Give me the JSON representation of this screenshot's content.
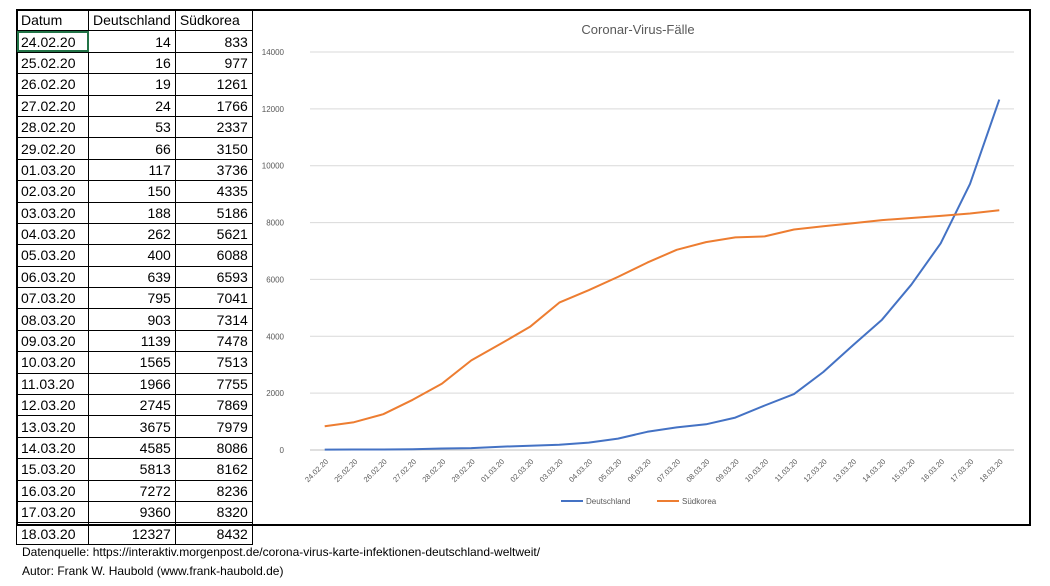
{
  "table": {
    "headers": [
      "Datum",
      "Deutschland",
      "Südkorea"
    ],
    "rows": [
      [
        "24.02.20",
        "14",
        "833"
      ],
      [
        "25.02.20",
        "16",
        "977"
      ],
      [
        "26.02.20",
        "19",
        "1261"
      ],
      [
        "27.02.20",
        "24",
        "1766"
      ],
      [
        "28.02.20",
        "53",
        "2337"
      ],
      [
        "29.02.20",
        "66",
        "3150"
      ],
      [
        "01.03.20",
        "117",
        "3736"
      ],
      [
        "02.03.20",
        "150",
        "4335"
      ],
      [
        "03.03.20",
        "188",
        "5186"
      ],
      [
        "04.03.20",
        "262",
        "5621"
      ],
      [
        "05.03.20",
        "400",
        "6088"
      ],
      [
        "06.03.20",
        "639",
        "6593"
      ],
      [
        "07.03.20",
        "795",
        "7041"
      ],
      [
        "08.03.20",
        "903",
        "7314"
      ],
      [
        "09.03.20",
        "1139",
        "7478"
      ],
      [
        "10.03.20",
        "1565",
        "7513"
      ],
      [
        "11.03.20",
        "1966",
        "7755"
      ],
      [
        "12.03.20",
        "2745",
        "7869"
      ],
      [
        "13.03.20",
        "3675",
        "7979"
      ],
      [
        "14.03.20",
        "4585",
        "8086"
      ],
      [
        "15.03.20",
        "5813",
        "8162"
      ],
      [
        "16.03.20",
        "7272",
        "8236"
      ],
      [
        "17.03.20",
        "9360",
        "8320"
      ],
      [
        "18.03.20",
        "12327",
        "8432"
      ]
    ]
  },
  "chart_data": {
    "type": "line",
    "title": "Coronar-Virus-Fälle",
    "xlabel": "",
    "ylabel": "",
    "ylim": [
      0,
      14000
    ],
    "yticks": [
      0,
      2000,
      4000,
      6000,
      8000,
      10000,
      12000,
      14000
    ],
    "grid": true,
    "legend_position": "bottom",
    "categories": [
      "24.02.20",
      "25.02.20",
      "26.02.20",
      "27.02.20",
      "28.02.20",
      "29.02.20",
      "01.03.20",
      "02.03.20",
      "03.03.20",
      "04.03.20",
      "05.03.20",
      "06.03.20",
      "07.03.20",
      "08.03.20",
      "09.03.20",
      "10.03.20",
      "11.03.20",
      "12.03.20",
      "13.03.20",
      "14.03.20",
      "15.03.20",
      "16.03.20",
      "17.03.20",
      "18.03.20"
    ],
    "series": [
      {
        "name": "Deutschland",
        "color": "#4472C4",
        "values": [
          14,
          16,
          19,
          24,
          53,
          66,
          117,
          150,
          188,
          262,
          400,
          639,
          795,
          903,
          1139,
          1565,
          1966,
          2745,
          3675,
          4585,
          5813,
          7272,
          9360,
          12327
        ]
      },
      {
        "name": "Südkorea",
        "color": "#ED7D31",
        "values": [
          833,
          977,
          1261,
          1766,
          2337,
          3150,
          3736,
          4335,
          5186,
          5621,
          6088,
          6593,
          7041,
          7314,
          7478,
          7513,
          7755,
          7869,
          7979,
          8086,
          8162,
          8236,
          8320,
          8432
        ]
      }
    ]
  },
  "footer": {
    "source": "Datenquelle: https://interaktiv.morgenpost.de/corona-virus-karte-infektionen-deutschland-weltweit/",
    "author": "Autor: Frank W. Haubold (www.frank-haubold.de)"
  }
}
